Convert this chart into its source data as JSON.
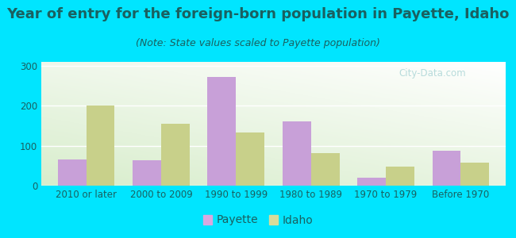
{
  "title": "Year of entry for the foreign-born population in Payette, Idaho",
  "subtitle": "(Note: State values scaled to Payette population)",
  "categories": [
    "2010 or later",
    "2000 to 2009",
    "1990 to 1999",
    "1980 to 1989",
    "1970 to 1979",
    "Before 1970"
  ],
  "payette_values": [
    65,
    63,
    272,
    160,
    20,
    88
  ],
  "idaho_values": [
    200,
    155,
    133,
    82,
    48,
    58
  ],
  "payette_color": "#c8a0d8",
  "idaho_color": "#c8d08a",
  "background_color": "#00e5ff",
  "grad_bottom_left": "#d8edcc",
  "grad_top_right": "#ffffff",
  "ylim": [
    0,
    310
  ],
  "yticks": [
    0,
    100,
    200,
    300
  ],
  "bar_width": 0.38,
  "title_fontsize": 13,
  "subtitle_fontsize": 9,
  "legend_fontsize": 10,
  "tick_fontsize": 8.5,
  "text_color": "#1a6060",
  "watermark_text": "City-Data.com",
  "watermark_color": "#b0d8d8",
  "legend_marker_color_payette": "#d8a8e0",
  "legend_marker_color_idaho": "#d8dc9a"
}
